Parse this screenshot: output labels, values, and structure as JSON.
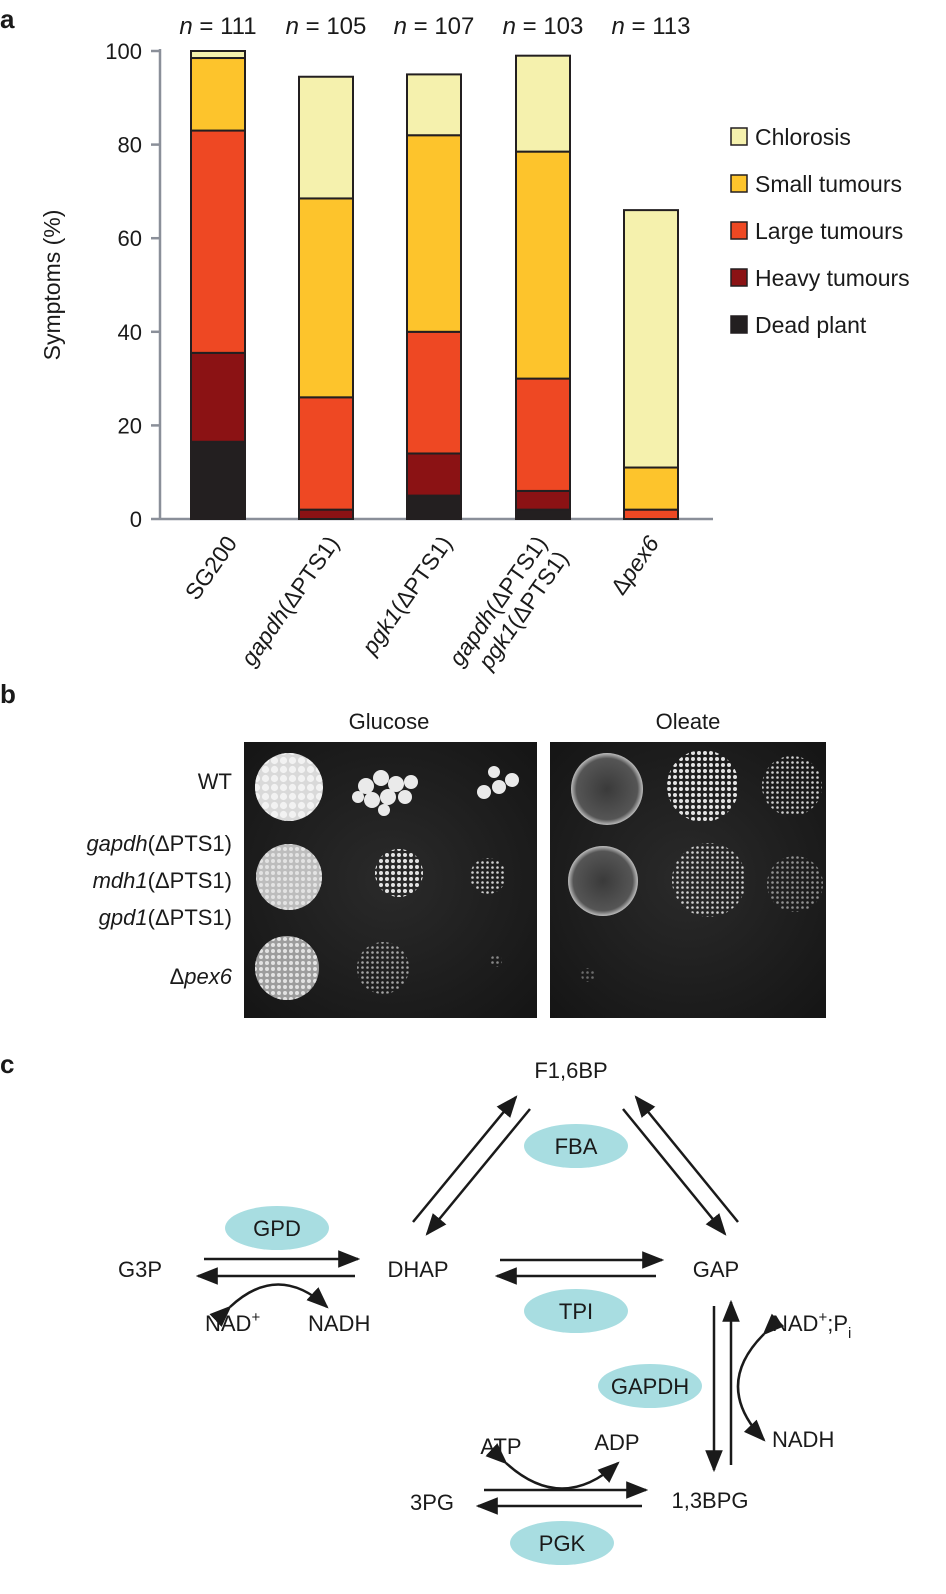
{
  "panel_a": {
    "label": "a",
    "chart_data": {
      "type": "bar",
      "stacked": true,
      "ylabel": "Symptoms (%)",
      "ylim": [
        0,
        100
      ],
      "yticks": [
        0,
        20,
        40,
        60,
        80,
        100
      ],
      "categories": [
        "SG200",
        "gapdh(ΔPTS1)",
        "pgk1(ΔPTS1)",
        "gapdh(ΔPTS1) pgk1(ΔPTS1)",
        "Δpex6"
      ],
      "n_labels": [
        "n = 111",
        "n = 105",
        "n = 107",
        "n = 103",
        "n = 113"
      ],
      "series": [
        {
          "name": "Dead plant",
          "color": "#231f20",
          "values": [
            16.5,
            0,
            5,
            2,
            0
          ]
        },
        {
          "name": "Heavy tumours",
          "color": "#8b1214",
          "values": [
            19,
            2,
            9,
            4,
            0
          ]
        },
        {
          "name": "Large tumours",
          "color": "#ee4823",
          "values": [
            47.5,
            24,
            26,
            24,
            2
          ]
        },
        {
          "name": "Small tumours",
          "color": "#fdc42c",
          "values": [
            15.5,
            42.5,
            42,
            48.5,
            9
          ]
        },
        {
          "name": "Chlorosis",
          "color": "#f5f1ad",
          "values": [
            1.5,
            26,
            13,
            20.5,
            55
          ]
        }
      ],
      "legend_position": "right",
      "grid": false
    }
  },
  "panel_b": {
    "label": "b",
    "plate_titles": [
      "Glucose",
      "Oleate"
    ],
    "rows": [
      "WT",
      "gapdh(ΔPTS1)",
      "mdh1(ΔPTS1)",
      "gpd1(ΔPTS1)",
      "Δpex6"
    ]
  },
  "panel_c": {
    "label": "c",
    "metabolites": {
      "f16bp": "F1,6BP",
      "g3p": "G3P",
      "dhap": "DHAP",
      "gap": "GAP",
      "bpg13": "1,3BPG",
      "pg3": "3PG",
      "nad": "NAD",
      "nadh": "NADH",
      "nadh2": "NADH",
      "nad_pi_prefix": "NAD",
      "nad_pi_suffix": ";P",
      "pi_sub": "i",
      "plus": "+",
      "atp": "ATP",
      "adp": "ADP"
    },
    "enzymes": [
      "FBA",
      "GPD",
      "TPI",
      "GAPDH",
      "PGK"
    ],
    "enzyme_color": "#a8dde1"
  }
}
